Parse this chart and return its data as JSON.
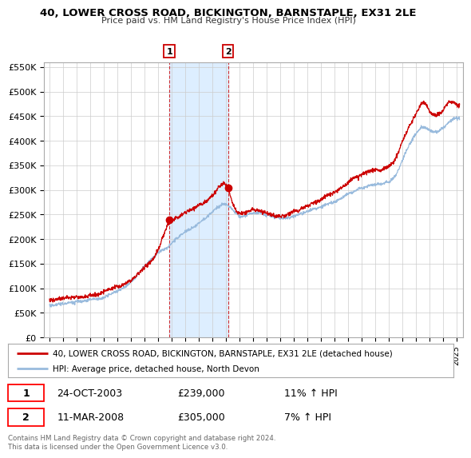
{
  "title": "40, LOWER CROSS ROAD, BICKINGTON, BARNSTAPLE, EX31 2LE",
  "subtitle": "Price paid vs. HM Land Registry's House Price Index (HPI)",
  "ylim": [
    0,
    560000
  ],
  "yticks": [
    0,
    50000,
    100000,
    150000,
    200000,
    250000,
    300000,
    350000,
    400000,
    450000,
    500000,
    550000
  ],
  "ytick_labels": [
    "£0",
    "£50K",
    "£100K",
    "£150K",
    "£200K",
    "£250K",
    "£300K",
    "£350K",
    "£400K",
    "£450K",
    "£500K",
    "£550K"
  ],
  "red_color": "#cc0000",
  "blue_color": "#99bbdd",
  "shade_color": "#ddeeff",
  "marker1_date": "24-OCT-2003",
  "marker1_price": 239000,
  "marker1_hpi": "11% ↑ HPI",
  "marker2_date": "11-MAR-2008",
  "marker2_price": 305000,
  "marker2_hpi": "7% ↑ HPI",
  "legend_red": "40, LOWER CROSS ROAD, BICKINGTON, BARNSTAPLE, EX31 2LE (detached house)",
  "legend_blue": "HPI: Average price, detached house, North Devon",
  "footer": "Contains HM Land Registry data © Crown copyright and database right 2024.\nThis data is licensed under the Open Government Licence v3.0.",
  "bg_color": "#ffffff",
  "grid_color": "#cccccc"
}
